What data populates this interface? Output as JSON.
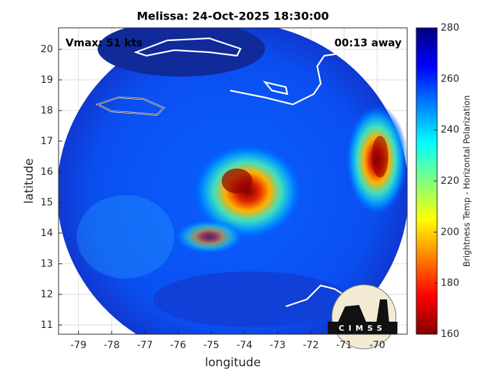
{
  "chart_data": {
    "type": "map",
    "title": "Melissa: 24-Oct-2025 18:30:00",
    "annotations": [
      "Vmax: 51 kts",
      "00:13 away"
    ],
    "xlabel": "longitude",
    "ylabel": "latitude",
    "xlim": [
      -79.6,
      -69.1
    ],
    "xticks": [
      -79,
      -78,
      -77,
      -76,
      -75,
      -74,
      -73,
      -72,
      -71,
      -70
    ],
    "ylim": [
      10.7,
      20.7
    ],
    "yticks": [
      11,
      12,
      13,
      14,
      15,
      16,
      17,
      18,
      19,
      20
    ],
    "grid": true,
    "colorbar": {
      "label": "Brightness Temp - Horizontal Polarization",
      "lim": [
        160,
        280
      ],
      "ticks": [
        160,
        180,
        200,
        220,
        240,
        260,
        280
      ],
      "colormap": "jet"
    },
    "logo": "CIMSS"
  }
}
